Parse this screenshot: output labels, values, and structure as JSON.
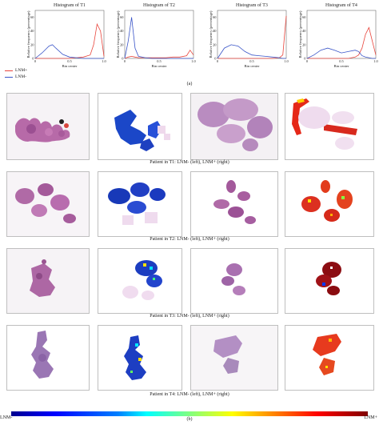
{
  "panel_a_label": "(a)",
  "panel_b_label": "(b)",
  "legend": {
    "items": [
      {
        "label": "LNM+",
        "color": "#e8453c"
      },
      {
        "label": "LNM-",
        "color": "#3a55c8"
      }
    ]
  },
  "colorbar": {
    "left_label": "LNM-",
    "right_label": "LNM+"
  },
  "captions": [
    "Patient in T1: LNM- (left), LNM+ (right)",
    "Patient in T2: LNM- (left), LNM+ (right)",
    "Patient in T3: LNM- (left), LNM+ (right)",
    "Patient in T4: LNM- (left), LNM+ (right)"
  ],
  "chart_data": [
    {
      "type": "line",
      "title": "Histogram of T1",
      "xlabel": "Bin center",
      "ylabel": "Relative frequency (percentage)",
      "xlim": [
        0,
        1
      ],
      "xticks": [
        "0",
        "0.5",
        "1.0"
      ],
      "yticks": [
        "0",
        "20",
        "40",
        "60"
      ],
      "ylim": [
        0,
        70
      ],
      "x": [
        0,
        0.1,
        0.2,
        0.25,
        0.3,
        0.4,
        0.5,
        0.6,
        0.7,
        0.8,
        0.85,
        0.9,
        0.95,
        1.0
      ],
      "series": [
        {
          "name": "LNM+",
          "color": "#e8453c",
          "values": [
            0,
            0,
            0,
            0,
            0,
            0,
            0,
            1,
            2,
            5,
            20,
            50,
            40,
            3
          ]
        },
        {
          "name": "LNM-",
          "color": "#3a55c8",
          "values": [
            0,
            8,
            18,
            20,
            15,
            6,
            2,
            1,
            0,
            0,
            0,
            0,
            0,
            0
          ]
        }
      ]
    },
    {
      "type": "line",
      "title": "Histogram of T2",
      "xlabel": "Bin center",
      "ylabel": "Relative frequency (percentage)",
      "xlim": [
        0,
        1
      ],
      "xticks": [
        "0",
        "0.5",
        "1.0"
      ],
      "yticks": [
        "0",
        "20",
        "40",
        "60"
      ],
      "ylim": [
        0,
        70
      ],
      "x": [
        0,
        0.05,
        0.1,
        0.15,
        0.2,
        0.3,
        0.4,
        0.5,
        0.6,
        0.7,
        0.8,
        0.9,
        0.95,
        1.0
      ],
      "series": [
        {
          "name": "LNM+",
          "color": "#e8453c",
          "values": [
            0,
            2,
            3,
            2,
            1,
            1,
            1,
            1,
            1,
            2,
            2,
            4,
            12,
            5
          ]
        },
        {
          "name": "LNM-",
          "color": "#3a55c8",
          "values": [
            0,
            25,
            60,
            15,
            3,
            1,
            0,
            0,
            0,
            0,
            0,
            0,
            0,
            0
          ]
        }
      ]
    },
    {
      "type": "line",
      "title": "Histogram of T3",
      "xlabel": "Bin center",
      "ylabel": "Relative frequency (percentage)",
      "xlim": [
        0,
        1
      ],
      "xticks": [
        "0",
        "0.5",
        "1.0"
      ],
      "yticks": [
        "0",
        "20",
        "40",
        "60"
      ],
      "ylim": [
        0,
        70
      ],
      "x": [
        0,
        0.1,
        0.2,
        0.3,
        0.4,
        0.5,
        0.6,
        0.7,
        0.8,
        0.9,
        0.95,
        0.98,
        1.0
      ],
      "series": [
        {
          "name": "LNM+",
          "color": "#e8453c",
          "values": [
            0,
            0,
            0,
            0,
            0,
            0,
            0,
            0,
            0,
            1,
            5,
            40,
            62
          ]
        },
        {
          "name": "LNM-",
          "color": "#3a55c8",
          "values": [
            0,
            15,
            20,
            18,
            10,
            5,
            4,
            3,
            2,
            1,
            0,
            0,
            0
          ]
        }
      ]
    },
    {
      "type": "line",
      "title": "Histogram of T4",
      "xlabel": "Bin center",
      "ylabel": "Relative frequency (percentage)",
      "xlim": [
        0,
        1
      ],
      "xticks": [
        "0",
        "0.5",
        "1.0"
      ],
      "yticks": [
        "0",
        "20",
        "40",
        "60"
      ],
      "ylim": [
        0,
        70
      ],
      "x": [
        0,
        0.1,
        0.2,
        0.3,
        0.4,
        0.5,
        0.6,
        0.7,
        0.75,
        0.8,
        0.85,
        0.9,
        0.95,
        1.0
      ],
      "series": [
        {
          "name": "LNM+",
          "color": "#e8453c",
          "values": [
            0,
            0,
            0,
            0,
            0,
            0,
            0,
            2,
            5,
            15,
            35,
            45,
            25,
            5
          ]
        },
        {
          "name": "LNM-",
          "color": "#3a55c8",
          "values": [
            0,
            5,
            12,
            15,
            12,
            8,
            10,
            12,
            10,
            4,
            2,
            1,
            0,
            0
          ]
        }
      ]
    }
  ]
}
